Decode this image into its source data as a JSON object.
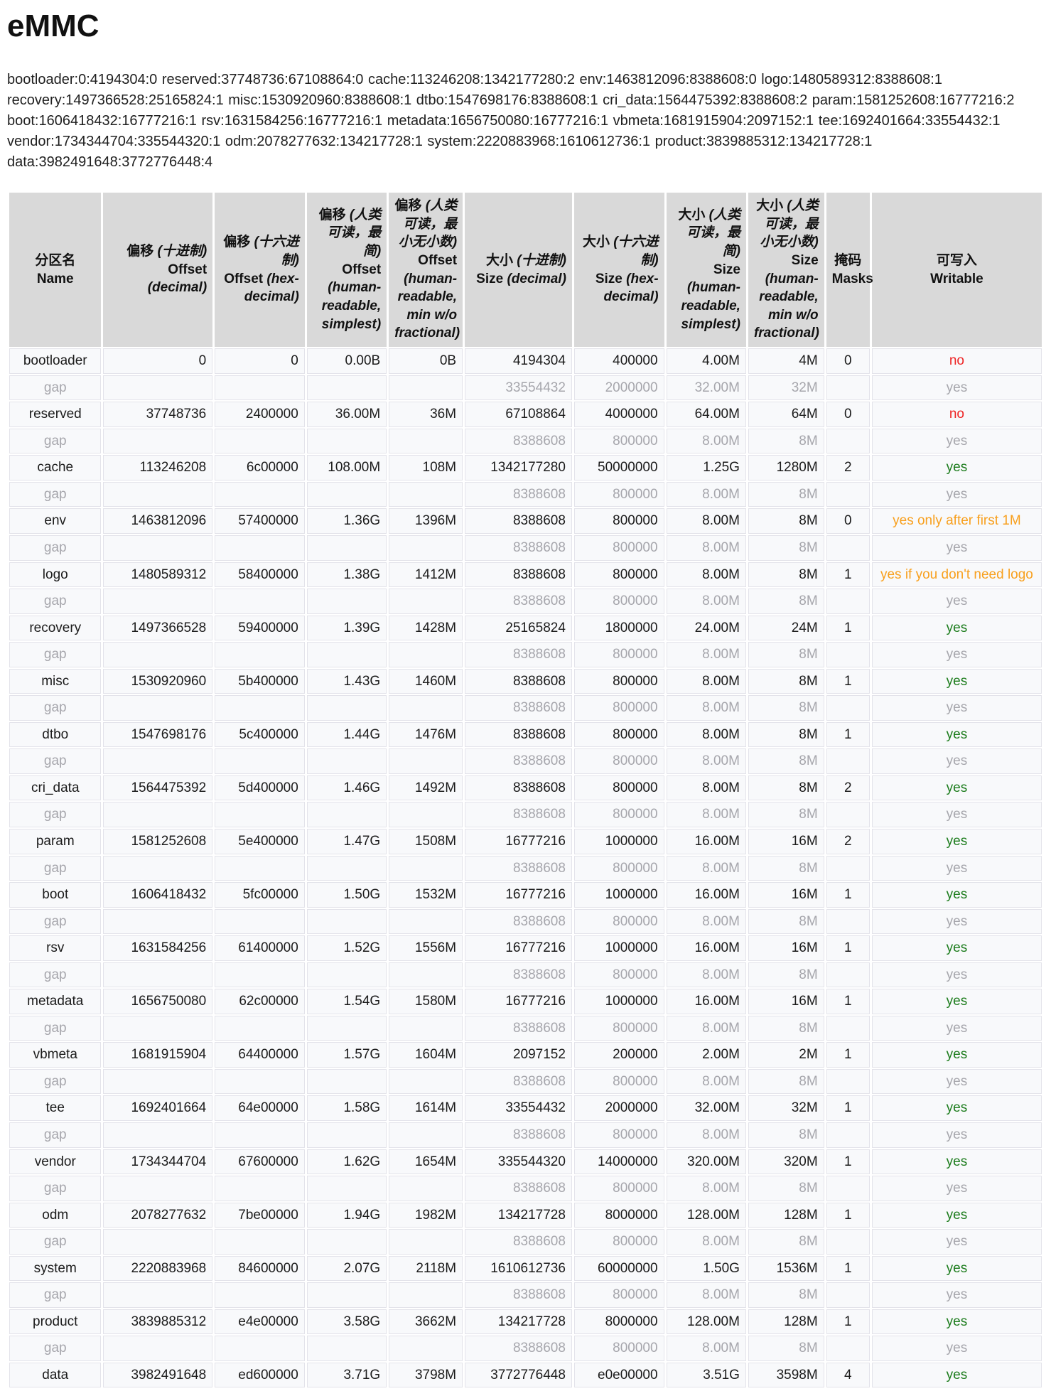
{
  "title": "eMMC",
  "summary": "bootloader:0:4194304:0 reserved:37748736:67108864:0 cache:113246208:1342177280:2 env:1463812096:8388608:0 logo:1480589312:8388608:1 recovery:1497366528:25165824:1 misc:1530920960:8388608:1 dtbo:1547698176:8388608:1 cri_data:1564475392:8388608:2 param:1581252608:16777216:2 boot:1606418432:16777216:1 rsv:1631584256:16777216:1 metadata:1656750080:16777216:1 vbmeta:1681915904:2097152:1 tee:1692401664:33554432:1 vendor:1734344704:335544320:1 odm:2078277632:134217728:1 system:2220883968:1610612736:1 product:3839885312:134217728:1 data:3982491648:3772776448:4",
  "colors": {
    "yes": "#1c7c1c",
    "no": "#ee2424",
    "warn": "#f8a01e",
    "gap_text": "#a6a6ac",
    "header_bg": "#d9d9d9",
    "cell_bg": "#f8f9fb",
    "cell_border": "#e3e3ea"
  },
  "table": {
    "columns": [
      {
        "id": "name",
        "zh": "分区名",
        "zh_i": "",
        "en": "Name",
        "en_i": "",
        "align": "center",
        "width": "9.1%"
      },
      {
        "id": "offset-decimal",
        "zh": "偏移",
        "zh_i": "(十进制)",
        "en": "Offset",
        "en_i": "(decimal)",
        "align": "right",
        "width": "10.8%"
      },
      {
        "id": "offset-hex",
        "zh": "偏移",
        "zh_i": "(十六进制)",
        "en": "Offset",
        "en_i": "(hex-decimal)",
        "align": "right",
        "width": "8.9%"
      },
      {
        "id": "offset-simplest",
        "zh": "偏移",
        "zh_i": "(人类可读，最简)",
        "en": "Offset",
        "en_i": "(human-readable, simplest)",
        "align": "right",
        "width": "7.9%"
      },
      {
        "id": "offset-min",
        "zh": "偏移",
        "zh_i": "(人类可读，最小无小数)",
        "en": "Offset",
        "en_i": "(human-readable, min w/o fractional)",
        "align": "right",
        "width": "7.3%"
      },
      {
        "id": "size-decimal",
        "zh": "大小",
        "zh_i": "(十进制)",
        "en": "Size",
        "en_i": "(decimal)",
        "align": "right",
        "width": "10.6%"
      },
      {
        "id": "size-hex",
        "zh": "大小",
        "zh_i": "(十六进制)",
        "en": "Size",
        "en_i": "(hex-decimal)",
        "align": "right",
        "width": "8.9%"
      },
      {
        "id": "size-simplest",
        "zh": "大小",
        "zh_i": "(人类可读，最简)",
        "en": "Size",
        "en_i": "(human-readable, simplest)",
        "align": "right",
        "width": "7.9%"
      },
      {
        "id": "size-min",
        "zh": "大小",
        "zh_i": "(人类可读，最小无小数)",
        "en": "Size",
        "en_i": "(human-readable, min w/o fractional)",
        "align": "right",
        "width": "7.5%"
      },
      {
        "id": "masks",
        "zh": "掩码",
        "zh_i": "",
        "en": "Masks",
        "en_i": "",
        "align": "center",
        "width": "4.3%"
      },
      {
        "id": "writable",
        "zh": "可写入",
        "zh_i": "",
        "en": "Writable",
        "en_i": "",
        "align": "center",
        "width": "16.8%"
      }
    ],
    "rows": [
      {
        "name": "bootloader",
        "gap": false,
        "cells": [
          "0",
          "0",
          "0.00B",
          "0B",
          "4194304",
          "400000",
          "4.00M",
          "4M",
          "0"
        ],
        "writable": "no",
        "writable_style": "no"
      },
      {
        "name": "gap",
        "gap": true,
        "cells": [
          "",
          "",
          "",
          "",
          "33554432",
          "2000000",
          "32.00M",
          "32M",
          ""
        ],
        "writable": "yes",
        "writable_style": "yes"
      },
      {
        "name": "reserved",
        "gap": false,
        "cells": [
          "37748736",
          "2400000",
          "36.00M",
          "36M",
          "67108864",
          "4000000",
          "64.00M",
          "64M",
          "0"
        ],
        "writable": "no",
        "writable_style": "no"
      },
      {
        "name": "gap",
        "gap": true,
        "cells": [
          "",
          "",
          "",
          "",
          "8388608",
          "800000",
          "8.00M",
          "8M",
          ""
        ],
        "writable": "yes",
        "writable_style": "yes"
      },
      {
        "name": "cache",
        "gap": false,
        "cells": [
          "113246208",
          "6c00000",
          "108.00M",
          "108M",
          "1342177280",
          "50000000",
          "1.25G",
          "1280M",
          "2"
        ],
        "writable": "yes",
        "writable_style": "yes"
      },
      {
        "name": "gap",
        "gap": true,
        "cells": [
          "",
          "",
          "",
          "",
          "8388608",
          "800000",
          "8.00M",
          "8M",
          ""
        ],
        "writable": "yes",
        "writable_style": "yes"
      },
      {
        "name": "env",
        "gap": false,
        "cells": [
          "1463812096",
          "57400000",
          "1.36G",
          "1396M",
          "8388608",
          "800000",
          "8.00M",
          "8M",
          "0"
        ],
        "writable": "yes only after first 1M",
        "writable_style": "warn"
      },
      {
        "name": "gap",
        "gap": true,
        "cells": [
          "",
          "",
          "",
          "",
          "8388608",
          "800000",
          "8.00M",
          "8M",
          ""
        ],
        "writable": "yes",
        "writable_style": "yes"
      },
      {
        "name": "logo",
        "gap": false,
        "cells": [
          "1480589312",
          "58400000",
          "1.38G",
          "1412M",
          "8388608",
          "800000",
          "8.00M",
          "8M",
          "1"
        ],
        "writable": "yes if you don't need logo",
        "writable_style": "warn"
      },
      {
        "name": "gap",
        "gap": true,
        "cells": [
          "",
          "",
          "",
          "",
          "8388608",
          "800000",
          "8.00M",
          "8M",
          ""
        ],
        "writable": "yes",
        "writable_style": "yes"
      },
      {
        "name": "recovery",
        "gap": false,
        "cells": [
          "1497366528",
          "59400000",
          "1.39G",
          "1428M",
          "25165824",
          "1800000",
          "24.00M",
          "24M",
          "1"
        ],
        "writable": "yes",
        "writable_style": "yes"
      },
      {
        "name": "gap",
        "gap": true,
        "cells": [
          "",
          "",
          "",
          "",
          "8388608",
          "800000",
          "8.00M",
          "8M",
          ""
        ],
        "writable": "yes",
        "writable_style": "yes"
      },
      {
        "name": "misc",
        "gap": false,
        "cells": [
          "1530920960",
          "5b400000",
          "1.43G",
          "1460M",
          "8388608",
          "800000",
          "8.00M",
          "8M",
          "1"
        ],
        "writable": "yes",
        "writable_style": "yes"
      },
      {
        "name": "gap",
        "gap": true,
        "cells": [
          "",
          "",
          "",
          "",
          "8388608",
          "800000",
          "8.00M",
          "8M",
          ""
        ],
        "writable": "yes",
        "writable_style": "yes"
      },
      {
        "name": "dtbo",
        "gap": false,
        "cells": [
          "1547698176",
          "5c400000",
          "1.44G",
          "1476M",
          "8388608",
          "800000",
          "8.00M",
          "8M",
          "1"
        ],
        "writable": "yes",
        "writable_style": "yes"
      },
      {
        "name": "gap",
        "gap": true,
        "cells": [
          "",
          "",
          "",
          "",
          "8388608",
          "800000",
          "8.00M",
          "8M",
          ""
        ],
        "writable": "yes",
        "writable_style": "yes"
      },
      {
        "name": "cri_data",
        "gap": false,
        "cells": [
          "1564475392",
          "5d400000",
          "1.46G",
          "1492M",
          "8388608",
          "800000",
          "8.00M",
          "8M",
          "2"
        ],
        "writable": "yes",
        "writable_style": "yes"
      },
      {
        "name": "gap",
        "gap": true,
        "cells": [
          "",
          "",
          "",
          "",
          "8388608",
          "800000",
          "8.00M",
          "8M",
          ""
        ],
        "writable": "yes",
        "writable_style": "yes"
      },
      {
        "name": "param",
        "gap": false,
        "cells": [
          "1581252608",
          "5e400000",
          "1.47G",
          "1508M",
          "16777216",
          "1000000",
          "16.00M",
          "16M",
          "2"
        ],
        "writable": "yes",
        "writable_style": "yes"
      },
      {
        "name": "gap",
        "gap": true,
        "cells": [
          "",
          "",
          "",
          "",
          "8388608",
          "800000",
          "8.00M",
          "8M",
          ""
        ],
        "writable": "yes",
        "writable_style": "yes"
      },
      {
        "name": "boot",
        "gap": false,
        "cells": [
          "1606418432",
          "5fc00000",
          "1.50G",
          "1532M",
          "16777216",
          "1000000",
          "16.00M",
          "16M",
          "1"
        ],
        "writable": "yes",
        "writable_style": "yes"
      },
      {
        "name": "gap",
        "gap": true,
        "cells": [
          "",
          "",
          "",
          "",
          "8388608",
          "800000",
          "8.00M",
          "8M",
          ""
        ],
        "writable": "yes",
        "writable_style": "yes"
      },
      {
        "name": "rsv",
        "gap": false,
        "cells": [
          "1631584256",
          "61400000",
          "1.52G",
          "1556M",
          "16777216",
          "1000000",
          "16.00M",
          "16M",
          "1"
        ],
        "writable": "yes",
        "writable_style": "yes"
      },
      {
        "name": "gap",
        "gap": true,
        "cells": [
          "",
          "",
          "",
          "",
          "8388608",
          "800000",
          "8.00M",
          "8M",
          ""
        ],
        "writable": "yes",
        "writable_style": "yes"
      },
      {
        "name": "metadata",
        "gap": false,
        "cells": [
          "1656750080",
          "62c00000",
          "1.54G",
          "1580M",
          "16777216",
          "1000000",
          "16.00M",
          "16M",
          "1"
        ],
        "writable": "yes",
        "writable_style": "yes"
      },
      {
        "name": "gap",
        "gap": true,
        "cells": [
          "",
          "",
          "",
          "",
          "8388608",
          "800000",
          "8.00M",
          "8M",
          ""
        ],
        "writable": "yes",
        "writable_style": "yes"
      },
      {
        "name": "vbmeta",
        "gap": false,
        "cells": [
          "1681915904",
          "64400000",
          "1.57G",
          "1604M",
          "2097152",
          "200000",
          "2.00M",
          "2M",
          "1"
        ],
        "writable": "yes",
        "writable_style": "yes"
      },
      {
        "name": "gap",
        "gap": true,
        "cells": [
          "",
          "",
          "",
          "",
          "8388608",
          "800000",
          "8.00M",
          "8M",
          ""
        ],
        "writable": "yes",
        "writable_style": "yes"
      },
      {
        "name": "tee",
        "gap": false,
        "cells": [
          "1692401664",
          "64e00000",
          "1.58G",
          "1614M",
          "33554432",
          "2000000",
          "32.00M",
          "32M",
          "1"
        ],
        "writable": "yes",
        "writable_style": "yes"
      },
      {
        "name": "gap",
        "gap": true,
        "cells": [
          "",
          "",
          "",
          "",
          "8388608",
          "800000",
          "8.00M",
          "8M",
          ""
        ],
        "writable": "yes",
        "writable_style": "yes"
      },
      {
        "name": "vendor",
        "gap": false,
        "cells": [
          "1734344704",
          "67600000",
          "1.62G",
          "1654M",
          "335544320",
          "14000000",
          "320.00M",
          "320M",
          "1"
        ],
        "writable": "yes",
        "writable_style": "yes"
      },
      {
        "name": "gap",
        "gap": true,
        "cells": [
          "",
          "",
          "",
          "",
          "8388608",
          "800000",
          "8.00M",
          "8M",
          ""
        ],
        "writable": "yes",
        "writable_style": "yes"
      },
      {
        "name": "odm",
        "gap": false,
        "cells": [
          "2078277632",
          "7be00000",
          "1.94G",
          "1982M",
          "134217728",
          "8000000",
          "128.00M",
          "128M",
          "1"
        ],
        "writable": "yes",
        "writable_style": "yes"
      },
      {
        "name": "gap",
        "gap": true,
        "cells": [
          "",
          "",
          "",
          "",
          "8388608",
          "800000",
          "8.00M",
          "8M",
          ""
        ],
        "writable": "yes",
        "writable_style": "yes"
      },
      {
        "name": "system",
        "gap": false,
        "cells": [
          "2220883968",
          "84600000",
          "2.07G",
          "2118M",
          "1610612736",
          "60000000",
          "1.50G",
          "1536M",
          "1"
        ],
        "writable": "yes",
        "writable_style": "yes"
      },
      {
        "name": "gap",
        "gap": true,
        "cells": [
          "",
          "",
          "",
          "",
          "8388608",
          "800000",
          "8.00M",
          "8M",
          ""
        ],
        "writable": "yes",
        "writable_style": "yes"
      },
      {
        "name": "product",
        "gap": false,
        "cells": [
          "3839885312",
          "e4e00000",
          "3.58G",
          "3662M",
          "134217728",
          "8000000",
          "128.00M",
          "128M",
          "1"
        ],
        "writable": "yes",
        "writable_style": "yes"
      },
      {
        "name": "gap",
        "gap": true,
        "cells": [
          "",
          "",
          "",
          "",
          "8388608",
          "800000",
          "8.00M",
          "8M",
          ""
        ],
        "writable": "yes",
        "writable_style": "yes"
      },
      {
        "name": "data",
        "gap": false,
        "cells": [
          "3982491648",
          "ed600000",
          "3.71G",
          "3798M",
          "3772776448",
          "e0e00000",
          "3.51G",
          "3598M",
          "4"
        ],
        "writable": "yes",
        "writable_style": "yes"
      }
    ]
  }
}
